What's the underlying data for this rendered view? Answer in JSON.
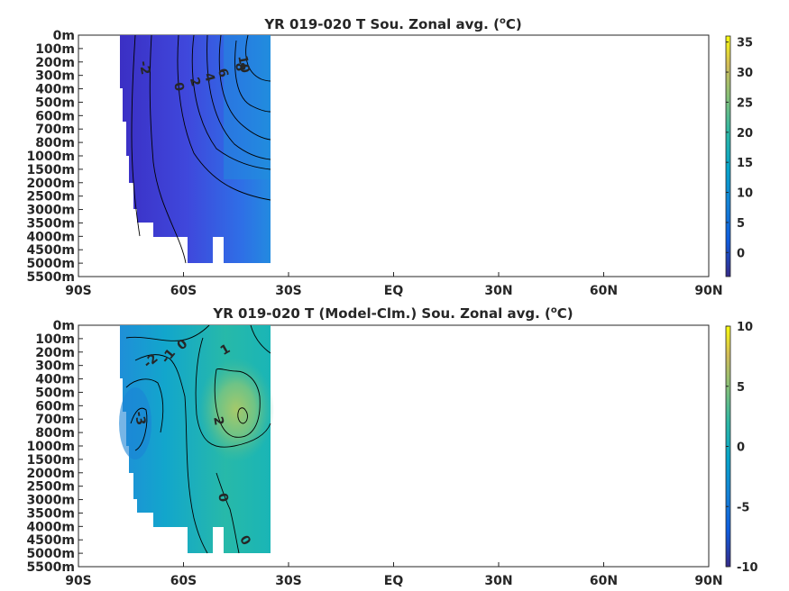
{
  "chart_data": [
    {
      "type": "heatmap",
      "title": "YR 019-020 T Sou. Zonal avg. (",
      "title_sup": "o",
      "title_end": "C)",
      "xticks": [
        "90S",
        "60S",
        "30S",
        "EQ",
        "30N",
        "60N",
        "90N"
      ],
      "yticks": [
        "0m",
        "100m",
        "200m",
        "300m",
        "400m",
        "500m",
        "600m",
        "700m",
        "800m",
        "1000m",
        "1500m",
        "2000m",
        "2500m",
        "3000m",
        "3500m",
        "4000m",
        "4500m",
        "5000m",
        "5500m"
      ],
      "colorbar_ticks": [
        "35",
        "30",
        "25",
        "20",
        "15",
        "10",
        "5",
        "0"
      ],
      "colorbar_range": [
        -4,
        36
      ],
      "contour_labels": [
        "-2",
        "0",
        "2",
        "4",
        "6",
        "8",
        "10"
      ],
      "grid": false
    },
    {
      "type": "heatmap",
      "title": "YR 019-020 T (Model-Clm.) Sou. Zonal avg. (",
      "title_sup": "o",
      "title_end": "C)",
      "xticks": [
        "90S",
        "60S",
        "30S",
        "EQ",
        "30N",
        "60N",
        "90N"
      ],
      "yticks": [
        "0m",
        "100m",
        "200m",
        "300m",
        "400m",
        "500m",
        "600m",
        "700m",
        "800m",
        "1000m",
        "1500m",
        "2000m",
        "2500m",
        "3000m",
        "3500m",
        "4000m",
        "4500m",
        "5000m",
        "5500m"
      ],
      "colorbar_ticks": [
        "10",
        "5",
        "0",
        "-5",
        "-10"
      ],
      "colorbar_range": [
        -10,
        10
      ],
      "contour_labels": [
        "0",
        "1",
        "-1",
        "-2",
        "-3",
        "2",
        "0",
        "0"
      ],
      "grid": false
    }
  ]
}
